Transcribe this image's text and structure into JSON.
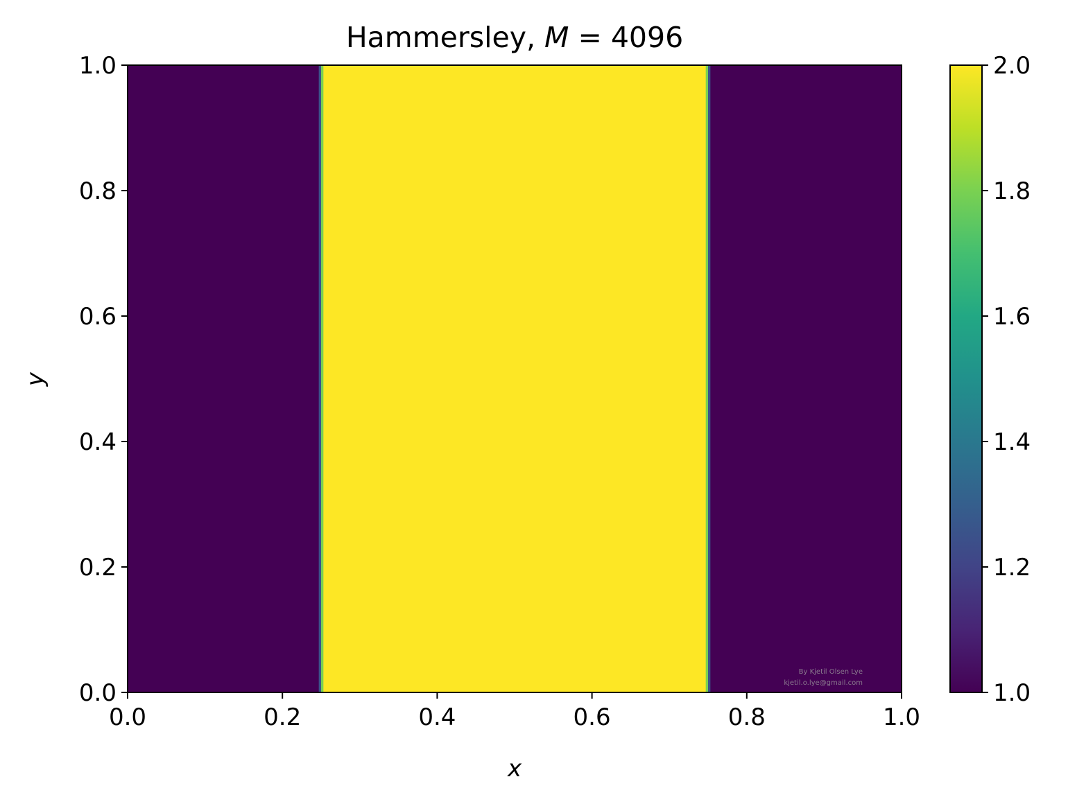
{
  "chart_data": {
    "type": "heatmap",
    "title_prefix": "Hammersley, ",
    "title_math_var": "M",
    "title_math_rest": " = 4096",
    "xlabel": "x",
    "ylabel": "y",
    "xlim": [
      0.0,
      1.0
    ],
    "ylim": [
      0.0,
      1.0
    ],
    "x_ticks": [
      "0.0",
      "0.2",
      "0.4",
      "0.6",
      "0.8",
      "1.0"
    ],
    "y_ticks": [
      "0.0",
      "0.2",
      "0.4",
      "0.6",
      "0.8",
      "1.0"
    ],
    "colorbar": {
      "range": [
        1.0,
        2.0
      ],
      "ticks": [
        "1.0",
        "1.2",
        "1.4",
        "1.6",
        "1.8",
        "2.0"
      ],
      "colormap": "viridis"
    },
    "regions": [
      {
        "x0": 0.0,
        "x1": 0.247,
        "value": 1.0
      },
      {
        "x0": 0.247,
        "x1": 0.25,
        "value": 1.25
      },
      {
        "x0": 0.25,
        "x1": 0.253,
        "value": 1.8
      },
      {
        "x0": 0.253,
        "x1": 0.747,
        "value": 2.0
      },
      {
        "x0": 0.747,
        "x1": 0.75,
        "value": 1.8
      },
      {
        "x0": 0.75,
        "x1": 0.753,
        "value": 1.25
      },
      {
        "x0": 0.753,
        "x1": 1.0,
        "value": 1.0
      }
    ],
    "watermark": [
      "By Kjetil Olsen Lye",
      "kjetil.o.lye@gmail.com"
    ]
  }
}
